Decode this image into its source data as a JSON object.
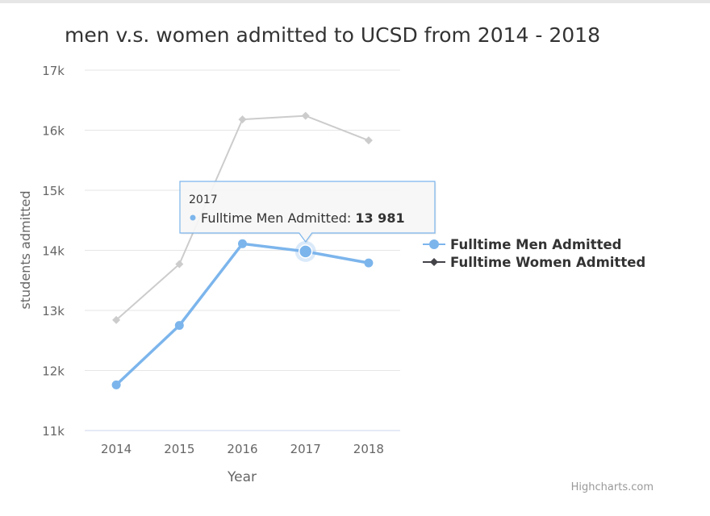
{
  "chart_data": {
    "type": "line",
    "title": "men v.s. women admitted to UCSD from 2014 - 2018",
    "xlabel": "Year",
    "ylabel": "students admitted",
    "categories": [
      "2014",
      "2015",
      "2016",
      "2017",
      "2018"
    ],
    "ylim": [
      11000,
      17000
    ],
    "yticks": [
      11000,
      12000,
      13000,
      14000,
      15000,
      16000,
      17000
    ],
    "ytick_labels": [
      "11k",
      "12k",
      "13k",
      "14k",
      "15k",
      "16k",
      "17k"
    ],
    "grid": true,
    "legend_position": "right",
    "series": [
      {
        "name": "Fulltime Men Admitted",
        "values": [
          11760,
          12750,
          14110,
          13981,
          13790
        ],
        "color": "#7cb5ec",
        "marker": "circle",
        "state": "hovered"
      },
      {
        "name": "Fulltime Women Admitted",
        "values": [
          12840,
          13770,
          16180,
          16240,
          15830
        ],
        "color": "#434348",
        "inactive_color": "#cccccc",
        "marker": "diamond",
        "state": "inactive"
      }
    ],
    "tooltip": {
      "header": "2017",
      "series_label": "Fulltime Men Admitted: ",
      "value_text": "13 981",
      "series_index": 0,
      "point_index": 3,
      "border_color": "#7cb5ec"
    },
    "credits": "Highcharts.com"
  }
}
